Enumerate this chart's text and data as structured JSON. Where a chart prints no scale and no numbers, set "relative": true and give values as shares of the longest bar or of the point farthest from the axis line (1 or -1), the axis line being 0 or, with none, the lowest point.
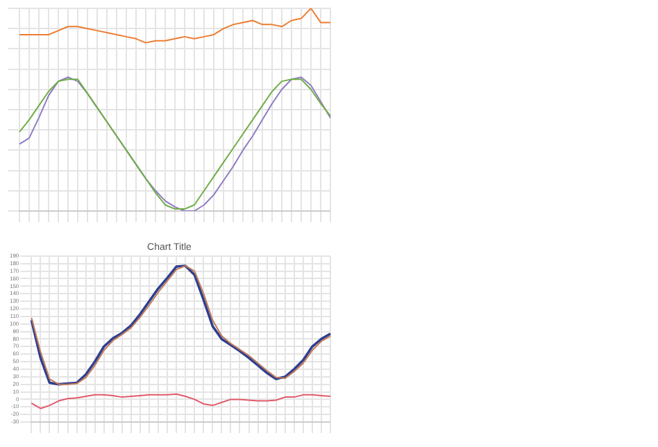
{
  "chart_data": [
    {
      "type": "line",
      "relative": true,
      "grid": true,
      "tick_labels": false,
      "categories": [
        null,
        null,
        null,
        null,
        null,
        null,
        null,
        null,
        null,
        null,
        null,
        null,
        null,
        null,
        null,
        null,
        null,
        null,
        null,
        null,
        null,
        null,
        null,
        null,
        null,
        null,
        null,
        null,
        null,
        null,
        null,
        null,
        null
      ],
      "series": [
        {
          "color": "#ed7d31",
          "values": [
            0.87,
            0.87,
            0.87,
            0.87,
            0.89,
            0.91,
            0.91,
            0.9,
            0.89,
            0.88,
            0.87,
            0.86,
            0.85,
            0.83,
            0.84,
            0.84,
            0.85,
            0.86,
            0.85,
            0.86,
            0.87,
            0.9,
            0.92,
            0.93,
            0.94,
            0.92,
            0.92,
            0.91,
            0.94,
            0.95,
            1,
            0.93,
            0.93
          ]
        },
        {
          "color": "#70ad47",
          "values": [
            0.39,
            0.45,
            0.52,
            0.59,
            0.64,
            0.65,
            0.65,
            0.58,
            0.51,
            0.44,
            0.37,
            0.3,
            0.23,
            0.16,
            0.09,
            0.03,
            0.01,
            0.01,
            0.03,
            0.1,
            0.17,
            0.24,
            0.31,
            0.38,
            0.45,
            0.52,
            0.59,
            0.64,
            0.65,
            0.65,
            0.6,
            0.53,
            0.47
          ]
        },
        {
          "color": "#8e7cc3",
          "values": [
            0.33,
            0.36,
            0.46,
            0.57,
            0.64,
            0.66,
            0.64,
            0.58,
            0.51,
            0.44,
            0.37,
            0.3,
            0.23,
            0.16,
            0.1,
            0.05,
            0.02,
            0,
            0,
            0.03,
            0.08,
            0.15,
            0.22,
            0.3,
            0.37,
            0.45,
            0.53,
            0.6,
            0.65,
            0.66,
            0.62,
            0.54,
            0.46
          ]
        }
      ]
    },
    {
      "type": "line",
      "title": "Chart Title",
      "grid": true,
      "tick_labels": "y",
      "ylim": [
        -30,
        190
      ],
      "yticks": [
        -30,
        -20,
        -10,
        0,
        10,
        20,
        30,
        40,
        50,
        60,
        70,
        80,
        90,
        100,
        110,
        120,
        130,
        140,
        150,
        160,
        170,
        180,
        190
      ],
      "categories": [
        null,
        null,
        null,
        null,
        null,
        null,
        null,
        null,
        null,
        null,
        null,
        null,
        null,
        null,
        null,
        null,
        null,
        null,
        null,
        null,
        null,
        null,
        null,
        null,
        null,
        null,
        null,
        null,
        null,
        null,
        null,
        null,
        null,
        null
      ],
      "series": [
        {
          "color": "#c07a5a",
          "values": [
            108,
            63,
            27,
            20,
            20,
            21,
            29,
            45,
            65,
            78,
            86,
            95,
            109,
            125,
            142,
            157,
            172,
            177,
            170,
            140,
            105,
            84,
            74,
            66,
            58,
            48,
            38,
            29,
            28,
            37,
            48,
            65,
            77,
            84
          ]
        },
        {
          "color": "#2f3f8f",
          "values": [
            105,
            55,
            22,
            20,
            21,
            22,
            33,
            50,
            70,
            81,
            88,
            98,
            113,
            130,
            147,
            161,
            176,
            177,
            165,
            132,
            97,
            80,
            72,
            64,
            55,
            45,
            35,
            27,
            30,
            40,
            52,
            70,
            80,
            87
          ]
        },
        {
          "color": "#e05a6a",
          "values": [
            -5,
            -12,
            -8,
            -2,
            1,
            2,
            4,
            6,
            6,
            5,
            3,
            4,
            5,
            6,
            6,
            6,
            7,
            4,
            0,
            -6,
            -8,
            -4,
            0,
            0,
            -1,
            -2,
            -2,
            -1,
            3,
            3,
            6,
            6,
            5,
            4
          ]
        }
      ]
    }
  ]
}
